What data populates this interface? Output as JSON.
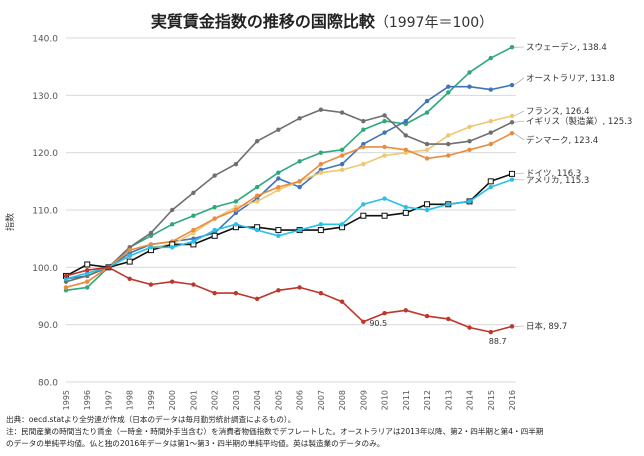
{
  "chart_data": {
    "type": "line",
    "title": "実質賃金指数の推移の国際比較",
    "subtitle": "（1997年＝100）",
    "ylabel": "指数",
    "ylim": [
      80,
      140
    ],
    "yticks": [
      "80.0",
      "90.0",
      "100.0",
      "110.0",
      "120.0",
      "130.0",
      "140.0"
    ],
    "ytick_values": [
      80,
      90,
      100,
      110,
      120,
      130,
      140
    ],
    "x": [
      "1995",
      "1996",
      "1997",
      "1998",
      "1999",
      "2000",
      "2001",
      "2002",
      "2003",
      "2004",
      "2005",
      "2006",
      "2007",
      "2008",
      "2009",
      "2010",
      "2011",
      "2012",
      "2013",
      "2014",
      "2015",
      "2016"
    ],
    "grid": true,
    "series": [
      {
        "name": "スウェーデン",
        "label": "スウェーデン, 138.4",
        "color": "#2ea87a",
        "values": [
          96.0,
          96.5,
          100.0,
          103.5,
          105.5,
          107.5,
          109.0,
          110.5,
          111.5,
          114.0,
          116.5,
          118.5,
          120.0,
          120.5,
          124.0,
          125.5,
          125.0,
          127.0,
          130.5,
          134.0,
          136.5,
          138.4
        ]
      },
      {
        "name": "オーストラリア",
        "label": "オーストラリア, 131.8",
        "color": "#3f74b8",
        "values": [
          98.0,
          98.5,
          100.0,
          102.5,
          104.0,
          104.5,
          105.0,
          106.0,
          109.5,
          112.0,
          115.5,
          114.0,
          117.0,
          118.0,
          121.5,
          123.5,
          125.5,
          129.0,
          131.5,
          131.5,
          131.0,
          131.8
        ]
      },
      {
        "name": "フランス",
        "label": "フランス, 126.4",
        "color": "#f0c66e",
        "values": [
          96.5,
          97.5,
          100.0,
          102.0,
          103.5,
          104.0,
          106.0,
          108.5,
          110.5,
          111.5,
          113.5,
          115.0,
          116.5,
          117.0,
          118.0,
          119.5,
          120.0,
          120.5,
          123.0,
          124.5,
          125.5,
          126.4
        ]
      },
      {
        "name": "イギリス（製造業）",
        "label": "イギリス（製造業）, 125.3",
        "color": "#6f6f6f",
        "values": [
          97.5,
          98.5,
          100.0,
          103.5,
          106.0,
          110.0,
          113.0,
          116.0,
          118.0,
          122.0,
          124.0,
          126.0,
          127.5,
          127.0,
          125.5,
          126.5,
          123.0,
          121.5,
          121.5,
          122.0,
          123.5,
          125.3
        ]
      },
      {
        "name": "デンマーク",
        "label": "デンマーク, 123.4",
        "color": "#e88c3e",
        "values": [
          96.5,
          97.5,
          100.0,
          103.0,
          104.0,
          104.5,
          106.5,
          108.5,
          110.0,
          112.5,
          114.0,
          115.0,
          118.0,
          119.5,
          121.0,
          121.0,
          120.5,
          119.0,
          119.5,
          120.5,
          121.5,
          123.4
        ]
      },
      {
        "name": "ドイツ",
        "label": "ドイツ, 116.3",
        "color": "#111111",
        "marker": "square",
        "values": [
          98.5,
          100.5,
          100.0,
          101.0,
          103.0,
          104.0,
          104.0,
          105.5,
          107.0,
          107.0,
          106.5,
          106.5,
          106.5,
          107.0,
          109.0,
          109.0,
          109.5,
          111.0,
          111.0,
          111.5,
          115.0,
          116.3
        ]
      },
      {
        "name": "アメリカ",
        "label": "アメリカ, 115.3",
        "color": "#28c0e8",
        "values": [
          98.0,
          99.0,
          100.0,
          102.0,
          103.5,
          103.5,
          104.5,
          106.5,
          107.5,
          106.5,
          105.5,
          106.5,
          107.5,
          107.5,
          111.0,
          112.0,
          110.5,
          110.0,
          111.0,
          111.5,
          114.0,
          115.3
        ]
      },
      {
        "name": "日本",
        "label": "日本, 89.7",
        "color": "#c0342a",
        "values": [
          98.5,
          99.5,
          100.0,
          98.0,
          97.0,
          97.5,
          97.0,
          95.5,
          95.5,
          94.5,
          96.0,
          96.5,
          95.5,
          94.0,
          90.5,
          92.0,
          92.5,
          91.5,
          91.0,
          89.5,
          88.7,
          89.7
        ]
      }
    ],
    "annotations": [
      "90.5",
      "88.7"
    ]
  },
  "notes": {
    "line1": "出典：oecd.statより全労連が作成（日本のデータは毎月勤労統計調査によるもの）。",
    "line2": "注：民間産業の時間当たり賃金（一時金・時間外手当含む）を消費者物価指数でデフレートした。オーストラリアは2013年以降、第2・四半期と第4・四半期",
    "line3": "のデータの単純平均値。仏と独の2016年データは第1～第3・四半期の単純平均値。英は製造業のデータのみ。"
  }
}
